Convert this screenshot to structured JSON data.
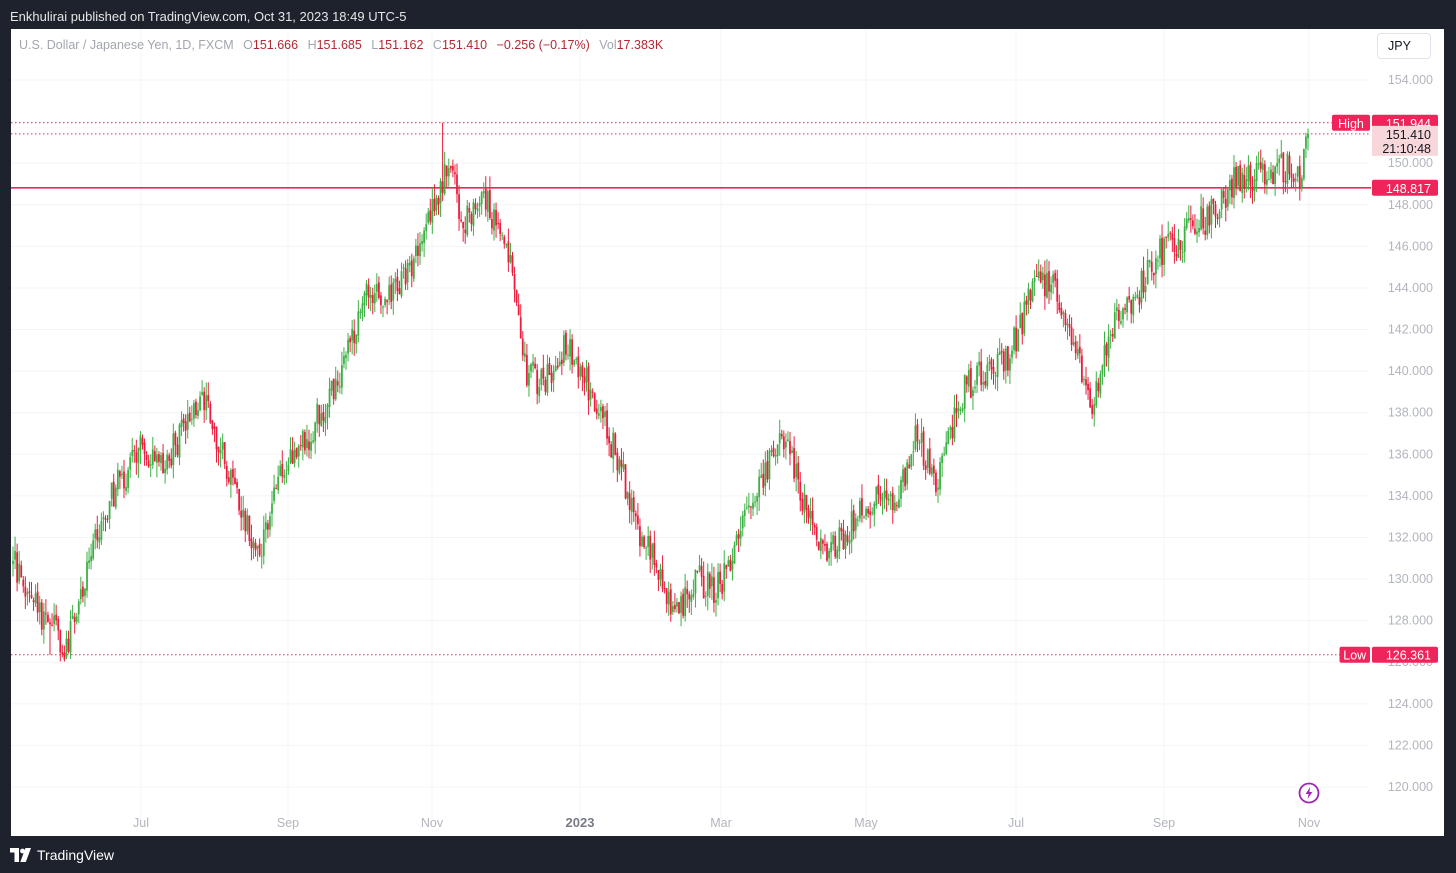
{
  "header": {
    "published_text": "Enkhulirai published on TradingView.com, Oct 31, 2023 18:49 UTC-5"
  },
  "legend": {
    "symbol": "U.S. Dollar / Japanese Yen, 1D, FXCM",
    "o_label": "O",
    "o_value": "151.666",
    "h_label": "H",
    "h_value": "151.685",
    "l_label": "L",
    "l_value": "151.162",
    "c_label": "C",
    "c_value": "151.410",
    "change": "−0.256 (−0.17%)",
    "vol_label": "Vol",
    "vol_value": "17.383K"
  },
  "currency_button": "JPY",
  "footer": {
    "brand": "TradingView"
  },
  "colors": {
    "up": "#26a69a",
    "up_candle": "#3cb043",
    "down": "#e91e3e",
    "marker": "#f0245a",
    "current_label_bg": "#f8d7da",
    "panel_bg": "#ffffff",
    "frame_bg": "#1e222d"
  },
  "chart_data": {
    "type": "candlestick",
    "symbol": "USD/JPY",
    "timeframe": "1D",
    "x_ticks": [
      "Jul",
      "Sep",
      "Nov",
      "2023",
      "Mar",
      "May",
      "Jul",
      "Sep",
      "Nov"
    ],
    "y_ticks": [
      120,
      122,
      124,
      126,
      128,
      130,
      132,
      134,
      136,
      138,
      140,
      142,
      144,
      146,
      148,
      150,
      152,
      154
    ],
    "ylim": [
      119.2,
      154.9
    ],
    "price_path_anchors": [
      {
        "t": 0,
        "p": 130.8
      },
      {
        "t": 9,
        "p": 129.0
      },
      {
        "t": 18,
        "p": 127.8
      },
      {
        "t": 25,
        "p": 126.6
      },
      {
        "t": 38,
        "p": 131.0
      },
      {
        "t": 50,
        "p": 134.5
      },
      {
        "t": 62,
        "p": 136.2
      },
      {
        "t": 74,
        "p": 135.5
      },
      {
        "t": 92,
        "p": 138.8
      },
      {
        "t": 104,
        "p": 135.5
      },
      {
        "t": 120,
        "p": 131.2
      },
      {
        "t": 130,
        "p": 135.0
      },
      {
        "t": 143,
        "p": 136.8
      },
      {
        "t": 158,
        "p": 139.5
      },
      {
        "t": 172,
        "p": 143.5
      },
      {
        "t": 188,
        "p": 144.0
      },
      {
        "t": 200,
        "p": 146.5
      },
      {
        "t": 212,
        "p": 149.8
      },
      {
        "t": 220,
        "p": 147.0
      },
      {
        "t": 228,
        "p": 148.5
      },
      {
        "t": 240,
        "p": 146.0
      },
      {
        "t": 250,
        "p": 140.0
      },
      {
        "t": 258,
        "p": 139.5
      },
      {
        "t": 270,
        "p": 141.5
      },
      {
        "t": 283,
        "p": 138.5
      },
      {
        "t": 296,
        "p": 135.5
      },
      {
        "t": 302,
        "p": 133.0
      },
      {
        "t": 311,
        "p": 131.0
      },
      {
        "t": 322,
        "p": 128.0
      },
      {
        "t": 333,
        "p": 130.0
      },
      {
        "t": 344,
        "p": 129.5
      },
      {
        "t": 356,
        "p": 133.5
      },
      {
        "t": 366,
        "p": 135.0
      },
      {
        "t": 376,
        "p": 137.0
      },
      {
        "t": 386,
        "p": 133.0
      },
      {
        "t": 396,
        "p": 131.0
      },
      {
        "t": 406,
        "p": 132.5
      },
      {
        "t": 418,
        "p": 134.0
      },
      {
        "t": 430,
        "p": 133.5
      },
      {
        "t": 440,
        "p": 137.0
      },
      {
        "t": 450,
        "p": 134.5
      },
      {
        "t": 462,
        "p": 139.0
      },
      {
        "t": 472,
        "p": 140.0
      },
      {
        "t": 484,
        "p": 140.5
      },
      {
        "t": 496,
        "p": 144.0
      },
      {
        "t": 506,
        "p": 144.5
      },
      {
        "t": 518,
        "p": 141.0
      },
      {
        "t": 524,
        "p": 138.0
      },
      {
        "t": 534,
        "p": 142.0
      },
      {
        "t": 546,
        "p": 143.5
      },
      {
        "t": 558,
        "p": 145.8
      },
      {
        "t": 570,
        "p": 146.5
      },
      {
        "t": 582,
        "p": 147.5
      },
      {
        "t": 594,
        "p": 149.2
      },
      {
        "t": 606,
        "p": 149.5
      },
      {
        "t": 618,
        "p": 149.8
      },
      {
        "t": 626,
        "p": 149.5
      },
      {
        "t": 630,
        "p": 151.5
      }
    ],
    "horizontal_lines": [
      {
        "label": "High",
        "value": "151.944",
        "style": "dotted"
      },
      {
        "label": "",
        "value": "151.410",
        "countdown": "21:10:48",
        "style": "dotted",
        "kind": "current"
      },
      {
        "label": "",
        "value": "148.817",
        "style": "solid",
        "kind": "level"
      },
      {
        "label": "Low",
        "value": "126.361",
        "style": "dotted"
      }
    ]
  }
}
